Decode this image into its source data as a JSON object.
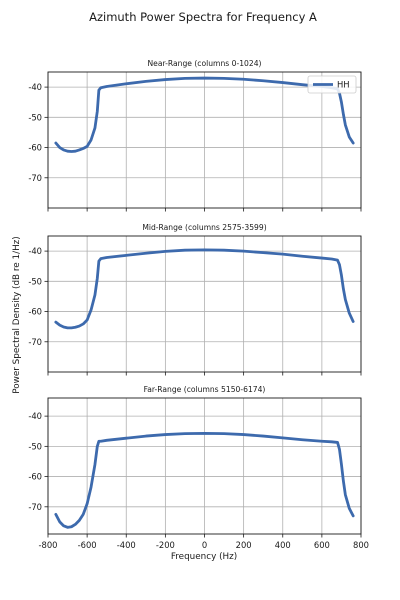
{
  "figure": {
    "title": "Azimuth Power Spectra for Frequency A",
    "xlabel": "Frequency (Hz)",
    "ylabel": "Power Spectral Density (dB re 1/Hz)",
    "legend_label": "HH",
    "series_color": "#3d6aad"
  },
  "chart_data": [
    {
      "type": "line",
      "title": "Near-Range (columns 0-1024)",
      "xlim": [
        -800,
        800
      ],
      "ylim": [
        -80,
        -35
      ],
      "xticks": [
        -800,
        -600,
        -400,
        -200,
        0,
        200,
        400,
        600,
        800
      ],
      "yticks": [
        -70,
        -60,
        -50,
        -40
      ],
      "grid": true,
      "legend": "top-right",
      "series": [
        {
          "name": "HH",
          "x": [
            -760,
            -740,
            -720,
            -700,
            -680,
            -660,
            -640,
            -620,
            -600,
            -580,
            -560,
            -548,
            -540,
            -530,
            -500,
            -400,
            -300,
            -200,
            -100,
            0,
            100,
            200,
            300,
            400,
            500,
            600,
            650,
            680,
            690,
            700,
            710,
            720,
            740,
            760
          ],
          "y": [
            -58.5,
            -60,
            -60.8,
            -61.2,
            -61.3,
            -61.2,
            -60.8,
            -60.3,
            -59.6,
            -57.5,
            -53.5,
            -48,
            -41,
            -40.2,
            -39.8,
            -38.9,
            -38.1,
            -37.5,
            -37.1,
            -37.0,
            -37.1,
            -37.4,
            -37.9,
            -38.5,
            -39.2,
            -39.8,
            -40.2,
            -40.6,
            -42,
            -45,
            -49,
            -52.5,
            -56.5,
            -58.5
          ]
        }
      ]
    },
    {
      "type": "line",
      "title": "Mid-Range (columns 2575-3599)",
      "xlim": [
        -800,
        800
      ],
      "ylim": [
        -80,
        -35
      ],
      "xticks": [
        -800,
        -600,
        -400,
        -200,
        0,
        200,
        400,
        600,
        800
      ],
      "yticks": [
        -70,
        -60,
        -50,
        -40
      ],
      "grid": true,
      "series": [
        {
          "name": "HH",
          "x": [
            -760,
            -740,
            -720,
            -700,
            -680,
            -660,
            -640,
            -620,
            -600,
            -580,
            -560,
            -548,
            -540,
            -530,
            -500,
            -400,
            -300,
            -200,
            -100,
            0,
            100,
            200,
            300,
            400,
            500,
            600,
            650,
            680,
            690,
            700,
            710,
            720,
            740,
            760
          ],
          "y": [
            -63.5,
            -64.5,
            -65.1,
            -65.4,
            -65.4,
            -65.2,
            -64.8,
            -64.1,
            -62.8,
            -59.5,
            -54.5,
            -49,
            -43.3,
            -42.5,
            -42.1,
            -41.4,
            -40.7,
            -40.1,
            -39.7,
            -39.6,
            -39.7,
            -40.0,
            -40.5,
            -41.0,
            -41.7,
            -42.3,
            -42.6,
            -43.0,
            -44.5,
            -48,
            -52.5,
            -56,
            -60.5,
            -63.3
          ]
        }
      ]
    },
    {
      "type": "line",
      "title": "Far-Range (columns 5150-6174)",
      "xlim": [
        -800,
        800
      ],
      "ylim": [
        -79,
        -34
      ],
      "xticks": [
        -800,
        -600,
        -400,
        -200,
        0,
        200,
        400,
        600,
        800
      ],
      "yticks": [
        -70,
        -60,
        -50,
        -40
      ],
      "grid": true,
      "series": [
        {
          "name": "HH",
          "x": [
            -760,
            -740,
            -720,
            -700,
            -680,
            -660,
            -640,
            -620,
            -600,
            -580,
            -560,
            -548,
            -540,
            -530,
            -500,
            -400,
            -300,
            -200,
            -100,
            0,
            100,
            200,
            300,
            400,
            500,
            600,
            650,
            680,
            690,
            700,
            710,
            720,
            740,
            760
          ],
          "y": [
            -72.5,
            -75,
            -76.3,
            -76.8,
            -76.6,
            -75.8,
            -74.5,
            -72.5,
            -69,
            -63.5,
            -56,
            -50,
            -48.3,
            -48.3,
            -48.0,
            -47.3,
            -46.6,
            -46.1,
            -45.8,
            -45.7,
            -45.8,
            -46.1,
            -46.6,
            -47.2,
            -47.8,
            -48.3,
            -48.5,
            -48.7,
            -51,
            -56,
            -61.5,
            -66,
            -70.5,
            -73
          ]
        }
      ]
    }
  ]
}
